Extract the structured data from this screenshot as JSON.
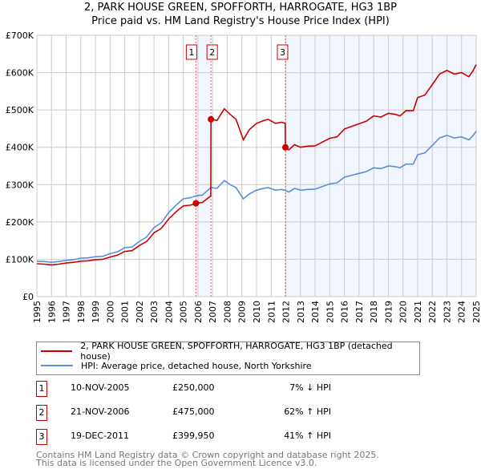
{
  "header": {
    "title": "2, PARK HOUSE GREEN, SPOFFORTH, HARROGATE, HG3 1BP",
    "subtitle": "Price paid vs. HM Land Registry's House Price Index (HPI)"
  },
  "chart_data": {
    "type": "line",
    "title": "2, PARK HOUSE GREEN, SPOFFORTH, HARROGATE, HG3 1BP",
    "subtitle": "Price paid vs. HM Land Registry's House Price Index (HPI)",
    "xlim": [
      1995,
      2025
    ],
    "ylim": [
      0,
      700000
    ],
    "x_ticks": [
      "1995",
      "1996",
      "1997",
      "1998",
      "1999",
      "2000",
      "2001",
      "2002",
      "2003",
      "2004",
      "2005",
      "2006",
      "2007",
      "2008",
      "2009",
      "2010",
      "2011",
      "2012",
      "2013",
      "2014",
      "2015",
      "2016",
      "2017",
      "2018",
      "2019",
      "2020",
      "2021",
      "2022",
      "2023",
      "2024",
      "2025"
    ],
    "y_ticks": [
      {
        "v": 0,
        "label": "£0"
      },
      {
        "v": 100000,
        "label": "£100K"
      },
      {
        "v": 200000,
        "label": "£200K"
      },
      {
        "v": 300000,
        "label": "£300K"
      },
      {
        "v": 400000,
        "label": "£400K"
      },
      {
        "v": 500000,
        "label": "£500K"
      },
      {
        "v": 600000,
        "label": "£600K"
      },
      {
        "v": 700000,
        "label": "£700K"
      }
    ],
    "grid": true,
    "x": [
      1995,
      1995.5,
      1996,
      1996.5,
      1997,
      1997.5,
      1998,
      1998.5,
      1999,
      1999.5,
      2000,
      2000.5,
      2001,
      2001.5,
      2002,
      2002.5,
      2003,
      2003.5,
      2004,
      2004.5,
      2005,
      2005.5,
      2005.86,
      2006.3,
      2006.88,
      2006.89,
      2007.3,
      2007.8,
      2008.2,
      2008.6,
      2009.1,
      2009.5,
      2010,
      2010.5,
      2010.8,
      2011.3,
      2011.7,
      2011.96,
      2011.97,
      2012.2,
      2012.6,
      2013,
      2013.5,
      2014,
      2014.5,
      2015,
      2015.5,
      2016,
      2016.5,
      2017,
      2017.5,
      2018,
      2018.5,
      2019,
      2019.5,
      2019.8,
      2020.2,
      2020.7,
      2021,
      2021.5,
      2022,
      2022.5,
      2023,
      2023.5,
      2024,
      2024.5,
      2024.8,
      2025
    ],
    "series": [
      {
        "name": "2, PARK HOUSE GREEN, SPOFFORTH, HARROGATE, HG3 1BP (detached house)",
        "color": "#cc0000",
        "values": [
          88,
          87,
          85,
          87,
          90,
          92,
          95,
          96,
          99,
          100,
          106,
          111,
          121,
          123,
          137,
          148,
          171,
          183,
          208,
          227,
          243,
          245,
          250,
          252,
          270,
          475,
          472,
          503,
          488,
          475,
          420,
          447,
          464,
          472,
          475,
          464,
          467,
          464,
          400,
          393,
          407,
          400,
          403,
          404,
          414,
          424,
          428,
          449,
          456,
          463,
          470,
          484,
          481,
          491,
          488,
          484,
          498,
          498,
          533,
          540,
          568,
          596,
          606,
          596,
          600,
          589,
          606,
          621
        ]
      },
      {
        "name": "HPI: Average price, detached house, North Yorkshire",
        "color": "#5b8fd4",
        "values": [
          95,
          94,
          92,
          94,
          97,
          99,
          103,
          104,
          107,
          108,
          115,
          120,
          131,
          133,
          148,
          160,
          185,
          198,
          225,
          245,
          262,
          265,
          270,
          272,
          292,
          292,
          290,
          311,
          300,
          292,
          262,
          275,
          285,
          290,
          292,
          285,
          287,
          285,
          285,
          280,
          290,
          285,
          287,
          288,
          295,
          302,
          305,
          320,
          325,
          330,
          335,
          345,
          343,
          350,
          348,
          345,
          355,
          355,
          380,
          385,
          405,
          425,
          432,
          425,
          428,
          420,
          432,
          443
        ]
      }
    ],
    "value_unit": "thousands GBP",
    "sales": [
      {
        "id": "1",
        "x": 2005.86,
        "y": 250000,
        "date": "10-NOV-2005",
        "price": "£250,000",
        "hpi": "7% ↓ HPI"
      },
      {
        "id": "2",
        "x": 2006.89,
        "y": 475000,
        "date": "21-NOV-2006",
        "price": "£475,000",
        "hpi": "62% ↑ HPI"
      },
      {
        "id": "3",
        "x": 2011.97,
        "y": 399950,
        "date": "19-DEC-2011",
        "price": "£399,950",
        "hpi": "41% ↑ HPI"
      }
    ],
    "shaded": [
      [
        2005.86,
        2006.89
      ],
      [
        2011.97,
        2025
      ]
    ],
    "legend_placement": "bottom"
  },
  "footer": {
    "line1": "Contains HM Land Registry data © Crown copyright and database right 2025.",
    "line2": "This data is licensed under the Open Government Licence v3.0."
  }
}
